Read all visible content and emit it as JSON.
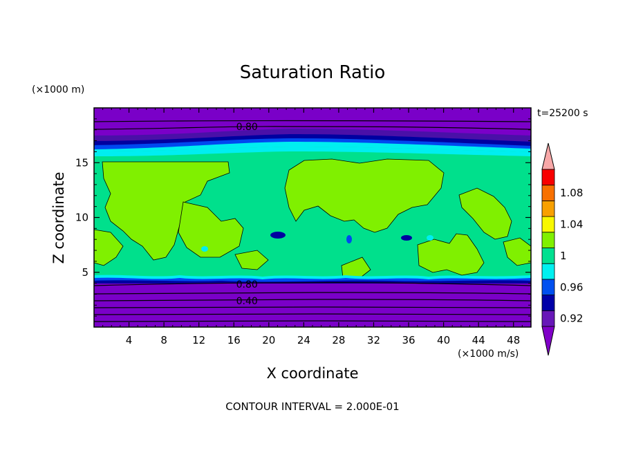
{
  "chart_data": {
    "type": "heatmap",
    "title": "Saturation Ratio",
    "xlabel": "X coordinate",
    "ylabel": "Z coordinate",
    "x_unit": "(×1000 m/s)",
    "y_unit": "(×1000 m)",
    "time_label": "t=25200 s",
    "footer": "CONTOUR INTERVAL = 2.000E-01",
    "xlim": [
      0,
      50
    ],
    "ylim": [
      0,
      20
    ],
    "xticks": [
      4,
      8,
      12,
      16,
      20,
      24,
      28,
      32,
      36,
      40,
      44,
      48
    ],
    "yticks": [
      5,
      10,
      15
    ],
    "contour_labels": [
      {
        "text": "0.80",
        "x": 17.5,
        "z": 18.3
      },
      {
        "text": "0.80",
        "x": 17.5,
        "z": 3.9
      },
      {
        "text": "0.40",
        "x": 17.5,
        "z": 2.4
      }
    ],
    "colorbar": {
      "levels": [
        0.92,
        0.94,
        0.96,
        0.98,
        1.0,
        1.02,
        1.04,
        1.06,
        1.08,
        1.1
      ],
      "tick_labels": [
        "0.92",
        "0.96",
        "1",
        "1.04",
        "1.08"
      ],
      "below_color": "#8000c8",
      "above_color": "#f8a8a8",
      "colors": [
        "#6818b8",
        "#0000a8",
        "#0050f0",
        "#00f0f0",
        "#00e090",
        "#80f000",
        "#f8f800",
        "#f8a000",
        "#f87000",
        "#f80000"
      ]
    }
  }
}
